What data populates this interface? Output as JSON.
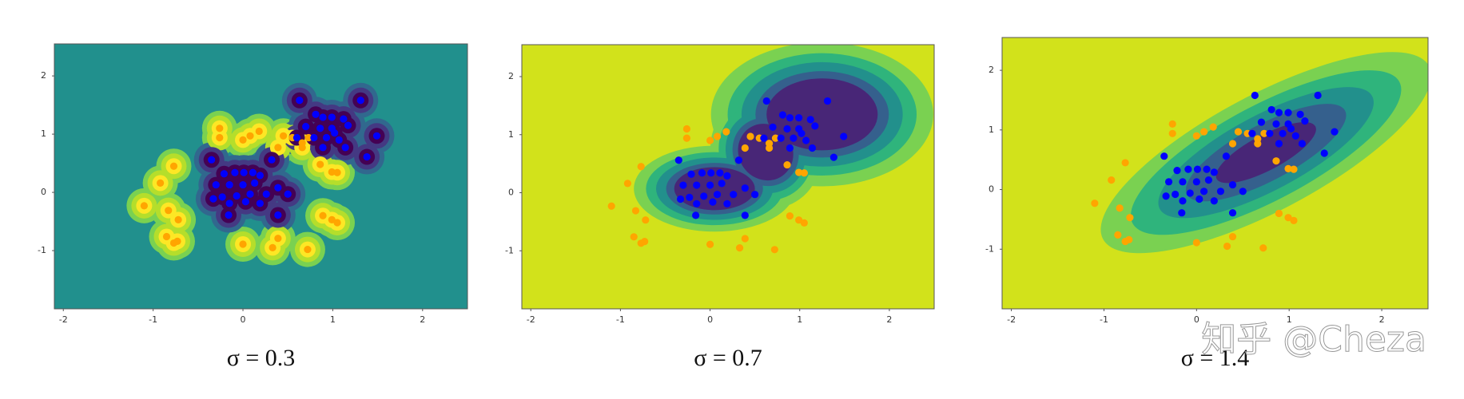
{
  "chart_data": [
    {
      "type": "scatter",
      "title": "σ = 0.3",
      "background": "#21908d",
      "xlim": [
        -2.1,
        2.5
      ],
      "ylim": [
        -2,
        2.55
      ],
      "xticks": [
        -2,
        -1,
        0,
        1,
        2
      ],
      "yticks": [
        -1,
        0,
        1,
        2
      ],
      "series": [
        {
          "color": "#ffa500",
          "x": [
            -0.26,
            -0.26,
            0,
            0.08,
            0.18,
            0.45,
            0.55,
            0.39,
            0.66,
            0.73,
            0.66,
            0.86,
            0.99,
            1.05,
            -0.77,
            -0.92,
            -1.1,
            -0.83,
            -0.72,
            -0.85,
            -0.73,
            -0.77,
            0,
            0.33,
            0.39,
            0.72,
            0.89,
            0.99,
            1.05
          ],
          "y": [
            1.1,
            0.94,
            0.9,
            0.97,
            1.05,
            0.97,
            0.94,
            0.77,
            0.85,
            0.94,
            0.77,
            0.48,
            0.35,
            0.34,
            0.45,
            0.16,
            -0.23,
            -0.31,
            -0.47,
            -0.76,
            -0.84,
            -0.87,
            -0.89,
            -0.95,
            -0.79,
            -0.98,
            -0.4,
            -0.47,
            -0.52
          ]
        },
        {
          "color": "#0000ff",
          "x": [
            -0.35,
            -0.21,
            -0.09,
            0.01,
            0.11,
            0.19,
            -0.3,
            -0.15,
            0,
            0.13,
            -0.23,
            -0.07,
            0.08,
            0.26,
            -0.33,
            -0.15,
            0.03,
            0.19,
            -0.16,
            0.39,
            0.32,
            0.5,
            0.39,
            0.63,
            1.31,
            0.81,
            0.89,
            0.99,
            1.12,
            0.7,
            0.86,
            0.99,
            1.17,
            0.79,
            0.93,
            1.07,
            1.49,
            0.6,
            0.89,
            1.14,
            1.38,
            1.02
          ],
          "y": [
            0.56,
            0.32,
            0.34,
            0.34,
            0.34,
            0.29,
            0.13,
            0.13,
            0.13,
            0.16,
            -0.08,
            -0.06,
            -0.03,
            -0.03,
            -0.11,
            -0.19,
            -0.16,
            -0.19,
            -0.39,
            -0.39,
            0.56,
            -0.03,
            0.08,
            1.58,
            1.58,
            1.34,
            1.29,
            1.29,
            1.26,
            1.13,
            1.1,
            1.1,
            1.15,
            0.94,
            0.94,
            0.9,
            0.97,
            0.94,
            0.77,
            0.77,
            0.61,
            1.02
          ]
        }
      ]
    },
    {
      "type": "scatter",
      "title": "σ = 0.7",
      "background": "#d2e21b",
      "xlim": [
        -2.1,
        2.5
      ],
      "ylim": [
        -2,
        2.55
      ],
      "xticks": [
        -2,
        -1,
        0,
        1,
        2
      ],
      "yticks": [
        -1,
        0,
        1,
        2
      ],
      "series": [
        {
          "color": "#ffa500",
          "x": [
            -0.26,
            -0.26,
            0,
            0.08,
            0.18,
            0.45,
            0.55,
            0.39,
            0.66,
            0.73,
            0.66,
            0.86,
            0.99,
            1.05,
            -0.77,
            -0.92,
            -1.1,
            -0.83,
            -0.72,
            -0.85,
            -0.73,
            -0.77,
            0,
            0.33,
            0.39,
            0.72,
            0.89,
            0.99,
            1.05
          ],
          "y": [
            1.1,
            0.94,
            0.9,
            0.97,
            1.05,
            0.97,
            0.94,
            0.77,
            0.85,
            0.94,
            0.77,
            0.48,
            0.35,
            0.34,
            0.45,
            0.16,
            -0.23,
            -0.31,
            -0.47,
            -0.76,
            -0.84,
            -0.87,
            -0.89,
            -0.95,
            -0.79,
            -0.98,
            -0.4,
            -0.47,
            -0.52
          ]
        },
        {
          "color": "#0000ff",
          "x": [
            -0.35,
            -0.21,
            -0.09,
            0.01,
            0.11,
            0.19,
            -0.3,
            -0.15,
            0,
            0.13,
            -0.23,
            -0.07,
            0.08,
            0.26,
            -0.33,
            -0.15,
            0.03,
            0.19,
            -0.16,
            0.39,
            0.32,
            0.5,
            0.39,
            0.63,
            1.31,
            0.81,
            0.89,
            0.99,
            1.12,
            0.7,
            0.86,
            0.99,
            1.17,
            0.79,
            0.93,
            1.07,
            1.49,
            0.6,
            0.89,
            1.14,
            1.38,
            1.02
          ],
          "y": [
            0.56,
            0.32,
            0.34,
            0.34,
            0.34,
            0.29,
            0.13,
            0.13,
            0.13,
            0.16,
            -0.08,
            -0.06,
            -0.03,
            -0.03,
            -0.11,
            -0.19,
            -0.16,
            -0.19,
            -0.39,
            -0.39,
            0.56,
            -0.03,
            0.08,
            1.58,
            1.58,
            1.34,
            1.29,
            1.29,
            1.26,
            1.13,
            1.1,
            1.1,
            1.15,
            0.94,
            0.94,
            0.9,
            0.97,
            0.94,
            0.77,
            0.77,
            0.61,
            1.02
          ]
        }
      ]
    },
    {
      "type": "scatter",
      "title": "σ = 1.4",
      "background": "#d2e21b",
      "xlim": [
        -2.1,
        2.5
      ],
      "ylim": [
        -2,
        2.55
      ],
      "xticks": [
        -2,
        -1,
        0,
        1,
        2
      ],
      "yticks": [
        -1,
        0,
        1,
        2
      ],
      "series": [
        {
          "color": "#ffa500",
          "x": [
            -0.26,
            -0.26,
            0,
            0.08,
            0.18,
            0.45,
            0.55,
            0.39,
            0.66,
            0.73,
            0.66,
            0.86,
            0.99,
            1.05,
            -0.77,
            -0.92,
            -1.1,
            -0.83,
            -0.72,
            -0.85,
            -0.73,
            -0.77,
            0,
            0.33,
            0.39,
            0.72,
            0.89,
            0.99,
            1.05
          ],
          "y": [
            1.1,
            0.94,
            0.9,
            0.97,
            1.05,
            0.97,
            0.94,
            0.77,
            0.85,
            0.94,
            0.77,
            0.48,
            0.35,
            0.34,
            0.45,
            0.16,
            -0.23,
            -0.31,
            -0.47,
            -0.76,
            -0.84,
            -0.87,
            -0.89,
            -0.95,
            -0.79,
            -0.98,
            -0.4,
            -0.47,
            -0.52
          ]
        },
        {
          "color": "#0000ff",
          "x": [
            -0.35,
            -0.21,
            -0.09,
            0.01,
            0.11,
            0.19,
            -0.3,
            -0.15,
            0,
            0.13,
            -0.23,
            -0.07,
            0.08,
            0.26,
            -0.33,
            -0.15,
            0.03,
            0.19,
            -0.16,
            0.39,
            0.32,
            0.5,
            0.39,
            0.63,
            1.31,
            0.81,
            0.89,
            0.99,
            1.12,
            0.7,
            0.86,
            0.99,
            1.17,
            0.79,
            0.93,
            1.07,
            1.49,
            0.6,
            0.89,
            1.14,
            1.38,
            1.02
          ],
          "y": [
            0.56,
            0.32,
            0.34,
            0.34,
            0.34,
            0.29,
            0.13,
            0.13,
            0.13,
            0.16,
            -0.08,
            -0.06,
            -0.03,
            -0.03,
            -0.11,
            -0.19,
            -0.16,
            -0.19,
            -0.39,
            -0.39,
            0.56,
            -0.03,
            0.08,
            1.58,
            1.58,
            1.34,
            1.29,
            1.29,
            1.26,
            1.13,
            1.1,
            1.1,
            1.15,
            0.94,
            0.94,
            0.9,
            0.97,
            0.94,
            0.77,
            0.77,
            0.61,
            1.02
          ]
        }
      ]
    }
  ],
  "watermark": "知乎 @Cheza"
}
